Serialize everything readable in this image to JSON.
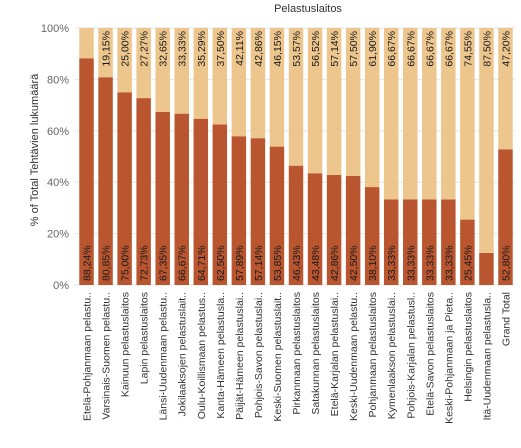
{
  "chart_data": {
    "type": "bar",
    "stacked": true,
    "title": "Pelastuslaitos",
    "ylabel": "% of Total Tehtävien lukumäärä",
    "xlabel": "",
    "ylim": [
      0,
      100
    ],
    "y_ticks": [
      "0%",
      "20%",
      "40%",
      "60%",
      "80%",
      "100%"
    ],
    "grid": true,
    "legend": "none",
    "categories": [
      "Etelä-Pohjanmaan pelastu..",
      "Varsinais-Suomen pelastu..",
      "Kainuun pelastuslaitos",
      "Lapin pelastuslaitos",
      "Länsi-Uudenmaan pelastu..",
      "Jokilaaksojen pelastuslait..",
      "Oulu-Koillismaan pelastus..",
      "Kanta-Hämeen pelastusla..",
      "Päijät-Hämeen pelastuslai..",
      "Pohjois-Savon pelastuslai..",
      "Keski-Suomen pelastuslait..",
      "Pirkanmaan pelastuslaitos",
      "Satakunnan pelastuslaitos",
      "Etelä-Karjalan pelastuslai..",
      "Keski-Uudenmaan pelastu..",
      "Pohjanmaan pelastuslaitos",
      "Kymenlaakson pelastuslai..",
      "Pohjois-Karjalan pelastusl..",
      "Etelä-Savon pelastuslaitos",
      "Keski-Pohjanmaan ja Pieta..",
      "Helsingin pelastuslaitos",
      "Itä-Uudenmaan pelastusla..",
      "Grand Total"
    ],
    "series": [
      {
        "values": [
          88.24,
          80.85,
          75.0,
          72.73,
          67.35,
          66.67,
          64.71,
          62.5,
          57.89,
          57.14,
          53.85,
          46.43,
          43.48,
          42.86,
          42.5,
          38.1,
          33.33,
          33.33,
          33.33,
          33.33,
          25.45,
          12.5,
          52.8
        ],
        "labels": [
          "88,24%",
          "80,85%",
          "75,00%",
          "72,73%",
          "67,35%",
          "66,67%",
          "64,71%",
          "62,50%",
          "57,89%",
          "57,14%",
          "53,85%",
          "46,43%",
          "43,48%",
          "42,86%",
          "42,50%",
          "38,10%",
          "33,33%",
          "33,33%",
          "33,33%",
          "33,33%",
          "25,45%",
          "",
          "52,80%"
        ],
        "color": "#b9562f"
      },
      {
        "values": [
          11.76,
          19.15,
          25.0,
          27.27,
          32.65,
          33.33,
          35.29,
          37.5,
          42.11,
          42.86,
          46.15,
          53.57,
          56.52,
          57.14,
          57.5,
          61.9,
          66.67,
          66.67,
          66.67,
          66.67,
          74.55,
          87.5,
          47.2
        ],
        "labels": [
          "",
          "19,15%",
          "25,00%",
          "27,27%",
          "32,65%",
          "33,33%",
          "35,29%",
          "37,50%",
          "42,11%",
          "42,86%",
          "46,15%",
          "53,57%",
          "56,52%",
          "57,14%",
          "57,50%",
          "61,90%",
          "66,67%",
          "66,67%",
          "66,67%",
          "66,67%",
          "74,55%",
          "87,50%",
          "47,20%"
        ],
        "color": "#edc68e"
      }
    ]
  }
}
